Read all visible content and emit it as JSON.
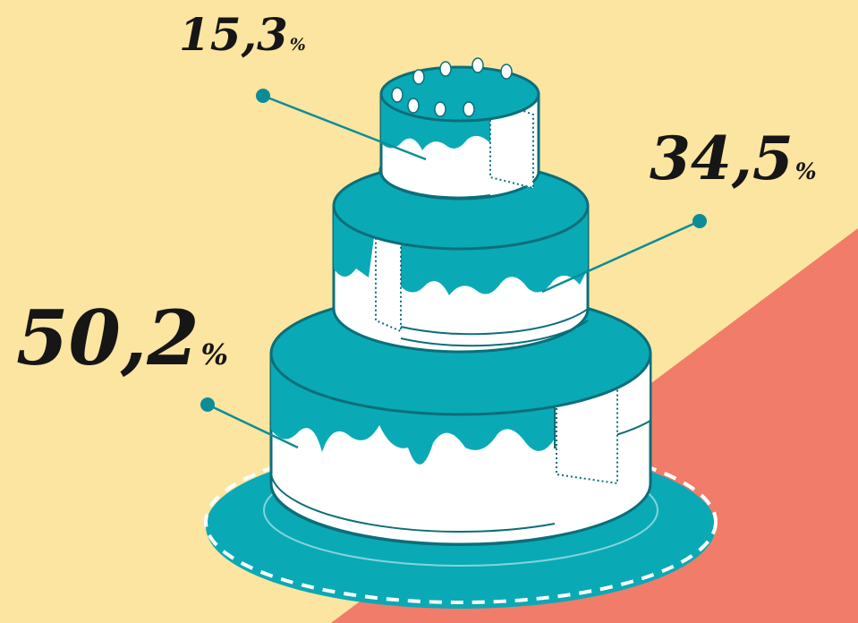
{
  "colors": {
    "background": "#FBE5A0",
    "accent_red": "#F07C69",
    "cake_teal": "#0AA9B6",
    "cake_outline": "#0C6E78",
    "cream": "#FFFFFF",
    "text": "#161616"
  },
  "chart_data": {
    "type": "pie",
    "title": "",
    "slices": [
      {
        "label": "Top tier",
        "value": 15.3,
        "text": "15,3",
        "unit": "%"
      },
      {
        "label": "Middle tier",
        "value": 34.5,
        "text": "34,5",
        "unit": "%"
      },
      {
        "label": "Bottom tier",
        "value": 50.2,
        "text": "50,2",
        "unit": "%"
      }
    ]
  }
}
